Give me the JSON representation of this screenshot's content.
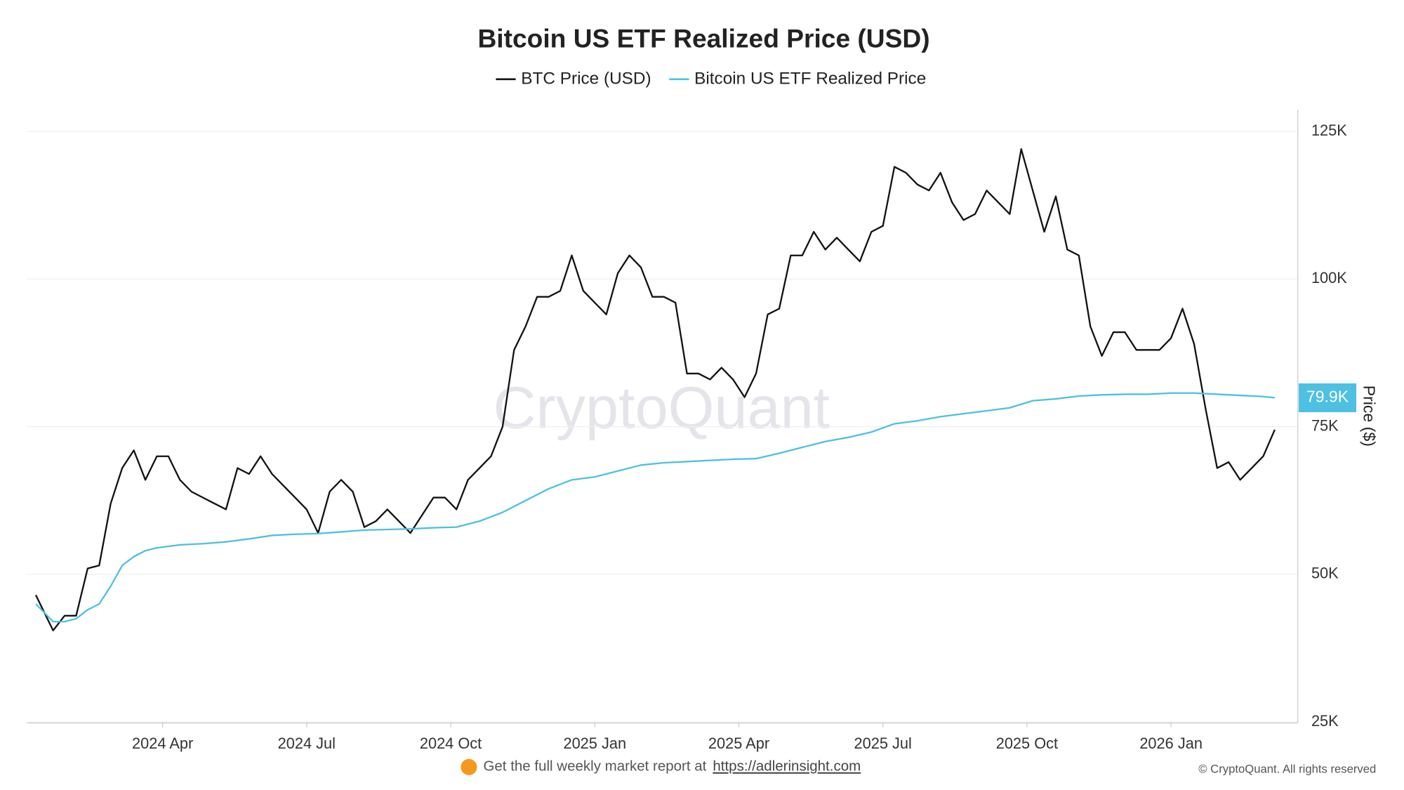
{
  "chart_data": {
    "type": "line",
    "title": "Bitcoin US ETF Realized Price (USD)",
    "y_label": "Price ($)",
    "watermark": "CryptoQuant",
    "footer_text": "Get the full weekly market report at",
    "footer_link": "https://adlerinsight.com",
    "copyright": "© CryptoQuant. All rights reserved",
    "grid": true,
    "legend": "top",
    "xlim": [
      2024.01,
      2026.22
    ],
    "ylim": [
      25000,
      128500
    ],
    "xticks": [
      {
        "value": 2024.25,
        "label": "2024 Apr"
      },
      {
        "value": 2024.5,
        "label": "2024 Jul"
      },
      {
        "value": 2024.75,
        "label": "2024 Oct"
      },
      {
        "value": 2025.0,
        "label": "2025 Jan"
      },
      {
        "value": 2025.25,
        "label": "2025 Apr"
      },
      {
        "value": 2025.5,
        "label": "2025 Jul"
      },
      {
        "value": 2025.75,
        "label": "2025 Oct"
      },
      {
        "value": 2026.0,
        "label": "2026 Jan"
      }
    ],
    "yticks": [
      {
        "value": 25000,
        "label": "25K"
      },
      {
        "value": 50000,
        "label": "50K"
      },
      {
        "value": 75000,
        "label": "75K"
      },
      {
        "value": 100000,
        "label": "100K"
      },
      {
        "value": 125000,
        "label": "125K"
      }
    ],
    "series": [
      {
        "name": "BTC Price (USD)",
        "color": "#111111",
        "x": [
          2024.03,
          2024.06,
          2024.08,
          2024.1,
          2024.12,
          2024.14,
          2024.16,
          2024.18,
          2024.2,
          2024.22,
          2024.24,
          2024.26,
          2024.28,
          2024.3,
          2024.32,
          2024.34,
          2024.36,
          2024.38,
          2024.4,
          2024.42,
          2024.44,
          2024.46,
          2024.48,
          2024.5,
          2024.52,
          2024.54,
          2024.56,
          2024.58,
          2024.6,
          2024.62,
          2024.64,
          2024.66,
          2024.68,
          2024.7,
          2024.72,
          2024.74,
          2024.76,
          2024.78,
          2024.8,
          2024.82,
          2024.84,
          2024.86,
          2024.88,
          2024.9,
          2024.92,
          2024.94,
          2024.96,
          2024.98,
          2025.0,
          2025.02,
          2025.04,
          2025.06,
          2025.08,
          2025.1,
          2025.12,
          2025.14,
          2025.16,
          2025.18,
          2025.2,
          2025.22,
          2025.24,
          2025.26,
          2025.28,
          2025.3,
          2025.32,
          2025.34,
          2025.36,
          2025.38,
          2025.4,
          2025.42,
          2025.44,
          2025.46,
          2025.48,
          2025.5,
          2025.52,
          2025.54,
          2025.56,
          2025.58,
          2025.6,
          2025.62,
          2025.64,
          2025.66,
          2025.68,
          2025.7,
          2025.72,
          2025.74,
          2025.76,
          2025.78,
          2025.8,
          2025.82,
          2025.84,
          2025.86,
          2025.88,
          2025.9,
          2025.92,
          2025.94,
          2025.96,
          2025.98,
          2026.0,
          2026.02,
          2026.04,
          2026.06,
          2026.08,
          2026.1,
          2026.12,
          2026.14,
          2026.16,
          2026.18
        ],
        "values": [
          46500,
          40500,
          43000,
          43000,
          51000,
          51500,
          62000,
          68000,
          71000,
          66000,
          70000,
          70000,
          66000,
          64000,
          63000,
          62000,
          61000,
          68000,
          67000,
          70000,
          67000,
          65000,
          63000,
          61000,
          57000,
          64000,
          66000,
          64000,
          58000,
          59000,
          61000,
          59000,
          57000,
          60000,
          63000,
          63000,
          61000,
          66000,
          68000,
          70000,
          75000,
          88000,
          92000,
          97000,
          97000,
          98000,
          104000,
          98000,
          96000,
          94000,
          101000,
          104000,
          102000,
          97000,
          97000,
          96000,
          84000,
          84000,
          83000,
          85000,
          83000,
          80000,
          84000,
          94000,
          95000,
          104000,
          104000,
          108000,
          105000,
          107000,
          105000,
          103000,
          108000,
          109000,
          119000,
          118000,
          116000,
          115000,
          118000,
          113000,
          110000,
          111000,
          115000,
          113000,
          111000,
          122000,
          115000,
          108000,
          114000,
          105000,
          104000,
          92000,
          87000,
          91000,
          91000,
          88000,
          88000,
          88000,
          90000,
          95000,
          89000,
          78000,
          68000,
          69000,
          66000,
          68000,
          70000,
          74500
        ]
      },
      {
        "name": "Bitcoin US ETF Realized Price",
        "color": "#4ec0e2",
        "x": [
          2024.03,
          2024.06,
          2024.08,
          2024.1,
          2024.12,
          2024.14,
          2024.16,
          2024.18,
          2024.2,
          2024.22,
          2024.24,
          2024.28,
          2024.32,
          2024.36,
          2024.4,
          2024.44,
          2024.48,
          2024.52,
          2024.56,
          2024.6,
          2024.64,
          2024.68,
          2024.72,
          2024.76,
          2024.8,
          2024.84,
          2024.88,
          2024.92,
          2024.96,
          2025.0,
          2025.04,
          2025.08,
          2025.12,
          2025.16,
          2025.2,
          2025.24,
          2025.28,
          2025.32,
          2025.36,
          2025.4,
          2025.44,
          2025.48,
          2025.52,
          2025.56,
          2025.6,
          2025.64,
          2025.68,
          2025.72,
          2025.76,
          2025.8,
          2025.84,
          2025.88,
          2025.92,
          2025.96,
          2026.0,
          2026.04,
          2026.08,
          2026.12,
          2026.16,
          2026.18
        ],
        "values": [
          45000,
          42000,
          42000,
          42500,
          44000,
          45000,
          48000,
          51500,
          53000,
          54000,
          54500,
          55000,
          55200,
          55500,
          56000,
          56600,
          56800,
          56900,
          57200,
          57500,
          57600,
          57700,
          57900,
          58000,
          59000,
          60500,
          62500,
          64500,
          66000,
          66500,
          67500,
          68500,
          68900,
          69100,
          69300,
          69500,
          69600,
          70500,
          71500,
          72500,
          73200,
          74100,
          75500,
          76000,
          76700,
          77200,
          77700,
          78200,
          79400,
          79700,
          80200,
          80400,
          80500,
          80500,
          80700,
          80700,
          80500,
          80300,
          80100,
          79900
        ],
        "value_labels": [
          null,
          null,
          null,
          null,
          null,
          null,
          null,
          null,
          null,
          null,
          null,
          null,
          null,
          null,
          null,
          null,
          null,
          null,
          null,
          null,
          null,
          null,
          null,
          null,
          null,
          null,
          null,
          null,
          null,
          null,
          null,
          null,
          null,
          null,
          null,
          null,
          null,
          null,
          null,
          null,
          null,
          null,
          null,
          null,
          null,
          null,
          null,
          null,
          null,
          null,
          null,
          null,
          null,
          null,
          null,
          null,
          null,
          null,
          null,
          "79.9K"
        ]
      }
    ]
  }
}
